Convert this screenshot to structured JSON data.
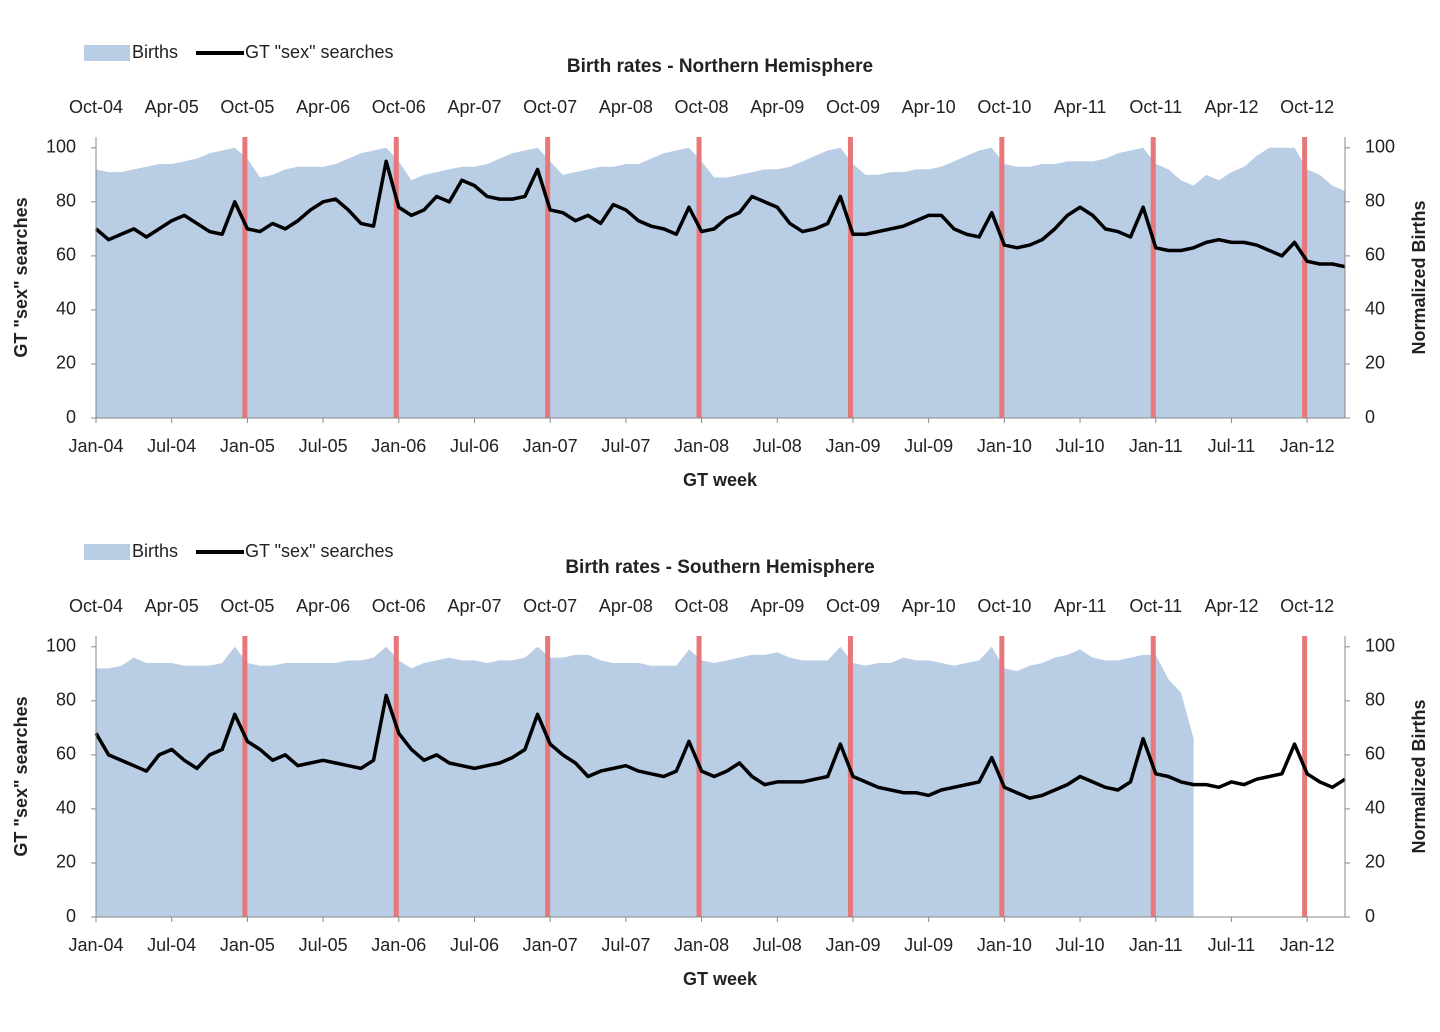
{
  "chart_data": [
    {
      "type": "combo",
      "title": "Birth rates - Northern Hemisphere",
      "xlabel": "GT week",
      "ylabel": "GT \"sex\" searches",
      "y2label": "Normalized Births",
      "x": [
        "Jan-04",
        "Feb-04",
        "Mar-04",
        "Apr-04",
        "May-04",
        "Jun-04",
        "Jul-04",
        "Aug-04",
        "Sep-04",
        "Oct-04",
        "Nov-04",
        "Dec-04",
        "Jan-05",
        "Feb-05",
        "Mar-05",
        "Apr-05",
        "May-05",
        "Jun-05",
        "Jul-05",
        "Aug-05",
        "Sep-05",
        "Oct-05",
        "Nov-05",
        "Dec-05",
        "Jan-06",
        "Feb-06",
        "Mar-06",
        "Apr-06",
        "May-06",
        "Jun-06",
        "Jul-06",
        "Aug-06",
        "Sep-06",
        "Oct-06",
        "Nov-06",
        "Dec-06",
        "Jan-07",
        "Feb-07",
        "Mar-07",
        "Apr-07",
        "May-07",
        "Jun-07",
        "Jul-07",
        "Aug-07",
        "Sep-07",
        "Oct-07",
        "Nov-07",
        "Dec-07",
        "Jan-08",
        "Feb-08",
        "Mar-08",
        "Apr-08",
        "May-08",
        "Jun-08",
        "Jul-08",
        "Aug-08",
        "Sep-08",
        "Oct-08",
        "Nov-08",
        "Dec-08",
        "Jan-09",
        "Feb-09",
        "Mar-09",
        "Apr-09",
        "May-09",
        "Jun-09",
        "Jul-09",
        "Aug-09",
        "Sep-09",
        "Oct-09",
        "Nov-09",
        "Dec-09",
        "Jan-10",
        "Feb-10",
        "Mar-10",
        "Apr-10",
        "May-10",
        "Jun-10",
        "Jul-10",
        "Aug-10",
        "Sep-10",
        "Oct-10",
        "Nov-10",
        "Dec-10",
        "Jan-11",
        "Feb-11",
        "Mar-11",
        "Apr-11",
        "May-11",
        "Jun-11",
        "Jul-11",
        "Aug-11",
        "Sep-11",
        "Oct-11",
        "Nov-11",
        "Dec-11",
        "Jan-12",
        "Feb-12",
        "Mar-12",
        "Apr-12"
      ],
      "x2ticks": [
        "Oct-04",
        "Apr-05",
        "Oct-05",
        "Apr-06",
        "Oct-06",
        "Apr-07",
        "Oct-07",
        "Apr-08",
        "Oct-08",
        "Apr-09",
        "Oct-09",
        "Apr-10",
        "Oct-10",
        "Apr-11",
        "Oct-11",
        "Apr-12",
        "Oct-12"
      ],
      "ylim": [
        0,
        104
      ],
      "yticks": [
        0,
        20,
        40,
        60,
        80,
        100
      ],
      "y2lim": [
        0,
        104
      ],
      "y2ticks": [
        0,
        20,
        40,
        60,
        80,
        100
      ],
      "vlines": [
        "Dec-04",
        "Dec-05",
        "Dec-06",
        "Dec-07",
        "Dec-08",
        "Dec-09",
        "Dec-10",
        "Dec-11"
      ],
      "vline_color": "#e8777a",
      "series": [
        {
          "name": "Births",
          "kind": "area",
          "axis": "y2",
          "color": "#b9cde5",
          "values": [
            92,
            91,
            91,
            92,
            93,
            94,
            94,
            95,
            96,
            98,
            99,
            100,
            96,
            89,
            90,
            92,
            93,
            93,
            93,
            94,
            96,
            98,
            99,
            100,
            95,
            88,
            90,
            91,
            92,
            93,
            93,
            94,
            96,
            98,
            99,
            100,
            95,
            90,
            91,
            92,
            93,
            93,
            94,
            94,
            96,
            98,
            99,
            100,
            95,
            89,
            89,
            90,
            91,
            92,
            92,
            93,
            95,
            97,
            99,
            100,
            94,
            90,
            90,
            91,
            91,
            92,
            92,
            93,
            95,
            97,
            99,
            100,
            94,
            93,
            93,
            94,
            94,
            95,
            95,
            95,
            96,
            98,
            99,
            100,
            94,
            92,
            88,
            86,
            90,
            88,
            91,
            93,
            97,
            100,
            100,
            100,
            92,
            90,
            86,
            84
          ]
        },
        {
          "name": "GT \"sex\" searches",
          "kind": "line",
          "color": "#000000",
          "values": [
            70,
            66,
            68,
            70,
            67,
            70,
            73,
            75,
            72,
            69,
            68,
            80,
            70,
            69,
            72,
            70,
            73,
            77,
            80,
            81,
            77,
            72,
            71,
            95,
            78,
            75,
            77,
            82,
            80,
            88,
            86,
            82,
            81,
            81,
            82,
            92,
            77,
            76,
            73,
            75,
            72,
            79,
            77,
            73,
            71,
            70,
            68,
            78,
            69,
            70,
            74,
            76,
            82,
            80,
            78,
            72,
            69,
            70,
            72,
            82,
            68,
            68,
            69,
            70,
            71,
            73,
            75,
            75,
            70,
            68,
            67,
            76,
            64,
            63,
            64,
            66,
            70,
            75,
            78,
            75,
            70,
            69,
            67,
            78,
            63,
            62,
            62,
            63,
            65,
            66,
            65,
            65,
            64,
            62,
            60,
            65,
            58,
            57,
            57,
            56
          ]
        }
      ]
    },
    {
      "type": "combo",
      "title": "Birth rates - Southern Hemisphere",
      "xlabel": "GT week",
      "ylabel": "GT \"sex\" searches",
      "y2label": "Normalized Births",
      "x": [
        "Jan-04",
        "Feb-04",
        "Mar-04",
        "Apr-04",
        "May-04",
        "Jun-04",
        "Jul-04",
        "Aug-04",
        "Sep-04",
        "Oct-04",
        "Nov-04",
        "Dec-04",
        "Jan-05",
        "Feb-05",
        "Mar-05",
        "Apr-05",
        "May-05",
        "Jun-05",
        "Jul-05",
        "Aug-05",
        "Sep-05",
        "Oct-05",
        "Nov-05",
        "Dec-05",
        "Jan-06",
        "Feb-06",
        "Mar-06",
        "Apr-06",
        "May-06",
        "Jun-06",
        "Jul-06",
        "Aug-06",
        "Sep-06",
        "Oct-06",
        "Nov-06",
        "Dec-06",
        "Jan-07",
        "Feb-07",
        "Mar-07",
        "Apr-07",
        "May-07",
        "Jun-07",
        "Jul-07",
        "Aug-07",
        "Sep-07",
        "Oct-07",
        "Nov-07",
        "Dec-07",
        "Jan-08",
        "Feb-08",
        "Mar-08",
        "Apr-08",
        "May-08",
        "Jun-08",
        "Jul-08",
        "Aug-08",
        "Sep-08",
        "Oct-08",
        "Nov-08",
        "Dec-08",
        "Jan-09",
        "Feb-09",
        "Mar-09",
        "Apr-09",
        "May-09",
        "Jun-09",
        "Jul-09",
        "Aug-09",
        "Sep-09",
        "Oct-09",
        "Nov-09",
        "Dec-09",
        "Jan-10",
        "Feb-10",
        "Mar-10",
        "Apr-10",
        "May-10",
        "Jun-10",
        "Jul-10",
        "Aug-10",
        "Sep-10",
        "Oct-10",
        "Nov-10",
        "Dec-10",
        "Jan-11",
        "Feb-11",
        "Mar-11",
        "Apr-11",
        "May-11",
        "Jun-11",
        "Jul-11",
        "Aug-11",
        "Sep-11",
        "Oct-11",
        "Nov-11",
        "Dec-11",
        "Jan-12",
        "Feb-12",
        "Mar-12",
        "Apr-12"
      ],
      "x2ticks": [
        "Oct-04",
        "Apr-05",
        "Oct-05",
        "Apr-06",
        "Oct-06",
        "Apr-07",
        "Oct-07",
        "Apr-08",
        "Oct-08",
        "Apr-09",
        "Oct-09",
        "Apr-10",
        "Oct-10",
        "Apr-11",
        "Oct-11",
        "Apr-12",
        "Oct-12"
      ],
      "ylim": [
        0,
        104
      ],
      "yticks": [
        0,
        20,
        40,
        60,
        80,
        100
      ],
      "y2lim": [
        0,
        104
      ],
      "y2ticks": [
        0,
        20,
        40,
        60,
        80,
        100
      ],
      "vlines": [
        "Dec-04",
        "Dec-05",
        "Dec-06",
        "Dec-07",
        "Dec-08",
        "Dec-09",
        "Dec-10",
        "Dec-11"
      ],
      "vline_color": "#e8777a",
      "series": [
        {
          "name": "Births",
          "kind": "area",
          "axis": "y2",
          "color": "#b9cde5",
          "values": [
            92,
            92,
            93,
            96,
            94,
            94,
            94,
            93,
            93,
            93,
            94,
            100,
            94,
            93,
            93,
            94,
            94,
            94,
            94,
            94,
            95,
            95,
            96,
            100,
            95,
            92,
            94,
            95,
            96,
            95,
            95,
            94,
            95,
            95,
            96,
            100,
            96,
            96,
            97,
            97,
            95,
            94,
            94,
            94,
            93,
            93,
            93,
            99,
            95,
            94,
            95,
            96,
            97,
            97,
            98,
            96,
            95,
            95,
            95,
            100,
            94,
            93,
            94,
            94,
            96,
            95,
            95,
            94,
            93,
            94,
            95,
            100,
            92,
            91,
            93,
            94,
            96,
            97,
            99,
            96,
            95,
            95,
            96,
            97,
            97,
            88,
            83,
            66,
            null,
            null,
            null,
            null,
            null,
            null,
            null,
            null,
            null,
            null,
            null,
            null
          ]
        },
        {
          "name": "GT \"sex\" searches",
          "kind": "line",
          "color": "#000000",
          "values": [
            68,
            60,
            58,
            56,
            54,
            60,
            62,
            58,
            55,
            60,
            62,
            75,
            65,
            62,
            58,
            60,
            56,
            57,
            58,
            57,
            56,
            55,
            58,
            82,
            68,
            62,
            58,
            60,
            57,
            56,
            55,
            56,
            57,
            59,
            62,
            75,
            64,
            60,
            57,
            52,
            54,
            55,
            56,
            54,
            53,
            52,
            54,
            65,
            54,
            52,
            54,
            57,
            52,
            49,
            50,
            50,
            50,
            51,
            52,
            64,
            52,
            50,
            48,
            47,
            46,
            46,
            45,
            47,
            48,
            49,
            50,
            59,
            48,
            46,
            44,
            45,
            47,
            49,
            52,
            50,
            48,
            47,
            50,
            66,
            53,
            52,
            50,
            49,
            49,
            48,
            50,
            49,
            51,
            52,
            53,
            64,
            53,
            50,
            48,
            51
          ]
        }
      ]
    }
  ]
}
